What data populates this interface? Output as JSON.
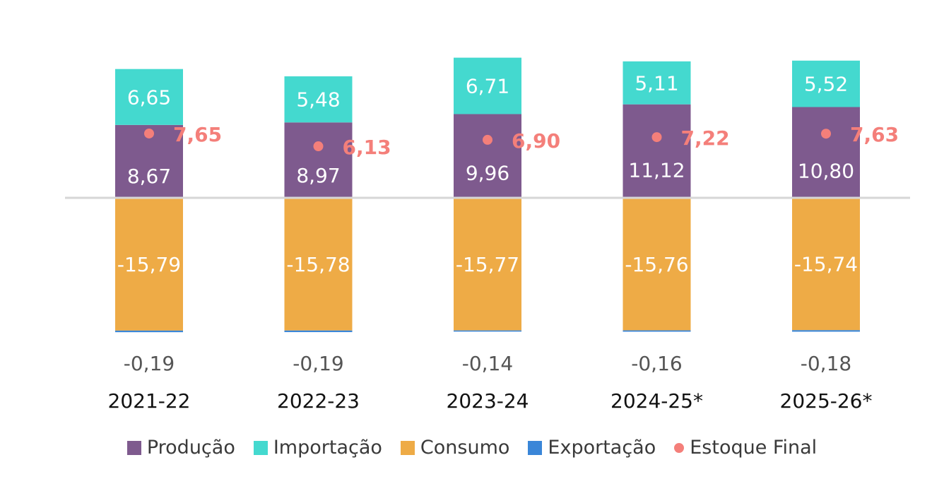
{
  "chart_data": {
    "type": "bar",
    "stacked": true,
    "categories": [
      "2021-22",
      "2022-23",
      "2023-24",
      "2024-25*",
      "2025-26*"
    ],
    "series": [
      {
        "name": "Produção",
        "kind": "bar",
        "color": "#7e5a8e",
        "values": [
          8.67,
          8.97,
          9.96,
          11.12,
          10.8
        ],
        "labels": [
          "8,67",
          "8,97",
          "9,96",
          "11,12",
          "10,80"
        ]
      },
      {
        "name": "Importação",
        "kind": "bar",
        "color": "#44d9cf",
        "values": [
          6.65,
          5.48,
          6.71,
          5.11,
          5.52
        ],
        "labels": [
          "6,65",
          "5,48",
          "6,71",
          "5,11",
          "5,52"
        ]
      },
      {
        "name": "Consumo",
        "kind": "bar",
        "color": "#eeab46",
        "values": [
          -15.79,
          -15.78,
          -15.77,
          -15.76,
          -15.74
        ],
        "labels": [
          "-15,79",
          "-15,78",
          "-15,77",
          "-15,76",
          "-15,74"
        ]
      },
      {
        "name": "Exportação",
        "kind": "bar",
        "color": "#3a86d8",
        "values": [
          -0.19,
          -0.19,
          -0.14,
          -0.16,
          -0.18
        ],
        "labels": [
          "-0,19",
          "-0,19",
          "-0,14",
          "-0,16",
          "-0,18"
        ]
      },
      {
        "name": "Estoque Final",
        "kind": "point",
        "color": "#f47f7a",
        "values": [
          7.65,
          6.13,
          6.9,
          7.22,
          7.63
        ],
        "labels": [
          "7,65",
          "6,13",
          "6,90",
          "7,22",
          "7,63"
        ]
      }
    ],
    "ylim": [
      -16.5,
      17
    ],
    "grid": false,
    "legend": "bottom",
    "title": "",
    "xlabel": "",
    "ylabel": ""
  }
}
